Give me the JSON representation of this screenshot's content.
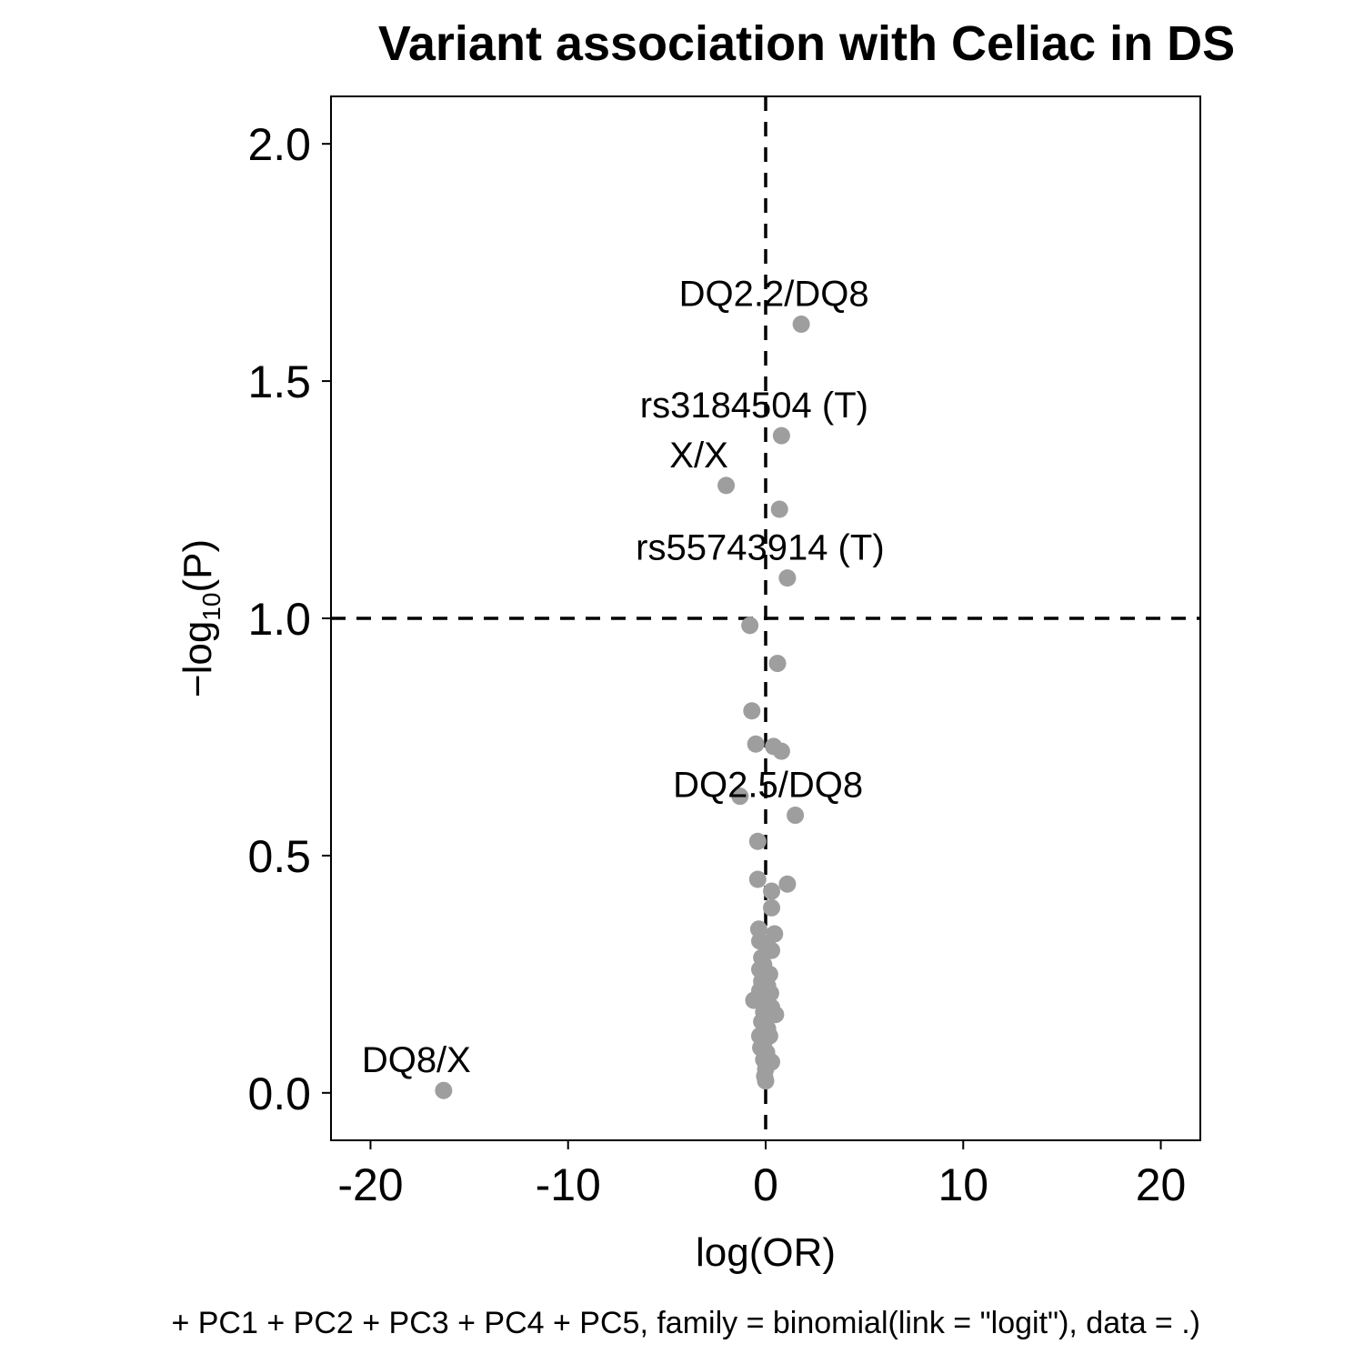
{
  "chart_data": {
    "type": "scatter",
    "title": "Variant association with Celiac in DS",
    "xlabel": "log(OR)",
    "ylabel": "-log10(P)",
    "ylabel_parts": {
      "prefix": "−log",
      "sub": "10",
      "suffix": "(P)"
    },
    "caption": "+ PC1 + PC2 + PC3 + PC4 + PC5, family = binomial(link = \"logit\"), data = .)",
    "xlim": [
      -22,
      22
    ],
    "ylim": [
      -0.1,
      2.1
    ],
    "x_ticks": [
      -20,
      -10,
      0,
      10,
      20
    ],
    "x_tick_labels": [
      "-20",
      "-10",
      "0",
      "10",
      "20"
    ],
    "y_ticks": [
      0,
      0.5,
      1,
      1.5,
      2
    ],
    "y_tick_labels": [
      "0.0",
      "0.5",
      "1.0",
      "1.5",
      "2.0"
    ],
    "reference_lines": {
      "vertical_x": 0,
      "horizontal_y": 1.0,
      "style": "dashed"
    },
    "point_color": "#9e9e9e",
    "points": [
      {
        "x": 1.8,
        "y": 1.62,
        "label": "DQ2.2/DQ8"
      },
      {
        "x": 0.8,
        "y": 1.385,
        "label": "rs3184504 (T)"
      },
      {
        "x": -2.0,
        "y": 1.28,
        "label": "X/X"
      },
      {
        "x": 0.7,
        "y": 1.23
      },
      {
        "x": 1.1,
        "y": 1.085,
        "label": "rs55743914 (T)"
      },
      {
        "x": -0.8,
        "y": 0.985
      },
      {
        "x": 0.6,
        "y": 0.905
      },
      {
        "x": -0.7,
        "y": 0.805
      },
      {
        "x": -0.5,
        "y": 0.735
      },
      {
        "x": 0.4,
        "y": 0.73
      },
      {
        "x": 0.8,
        "y": 0.72
      },
      {
        "x": -1.3,
        "y": 0.625
      },
      {
        "x": 1.5,
        "y": 0.585,
        "label": "DQ2.5/DQ8"
      },
      {
        "x": -0.4,
        "y": 0.53
      },
      {
        "x": -0.4,
        "y": 0.45
      },
      {
        "x": 1.1,
        "y": 0.44
      },
      {
        "x": 0.3,
        "y": 0.425
      },
      {
        "x": 0.3,
        "y": 0.39
      },
      {
        "x": -0.35,
        "y": 0.345
      },
      {
        "x": 0.45,
        "y": 0.335
      },
      {
        "x": -0.3,
        "y": 0.32
      },
      {
        "x": 0.1,
        "y": 0.31
      },
      {
        "x": 0.3,
        "y": 0.3
      },
      {
        "x": -0.2,
        "y": 0.285
      },
      {
        "x": -0.1,
        "y": 0.27
      },
      {
        "x": -0.3,
        "y": 0.26
      },
      {
        "x": 0.2,
        "y": 0.25
      },
      {
        "x": -0.2,
        "y": 0.235
      },
      {
        "x": 0.1,
        "y": 0.225
      },
      {
        "x": -0.3,
        "y": 0.215
      },
      {
        "x": 0.25,
        "y": 0.21
      },
      {
        "x": -0.6,
        "y": 0.195
      },
      {
        "x": 0.0,
        "y": 0.19
      },
      {
        "x": 0.3,
        "y": 0.18
      },
      {
        "x": -0.1,
        "y": 0.17
      },
      {
        "x": 0.5,
        "y": 0.165
      },
      {
        "x": -0.2,
        "y": 0.15
      },
      {
        "x": 0.1,
        "y": 0.135
      },
      {
        "x": -0.3,
        "y": 0.12
      },
      {
        "x": 0.2,
        "y": 0.12
      },
      {
        "x": -0.1,
        "y": 0.105
      },
      {
        "x": -0.25,
        "y": 0.095
      },
      {
        "x": 0.05,
        "y": 0.085
      },
      {
        "x": -0.1,
        "y": 0.07
      },
      {
        "x": 0.3,
        "y": 0.065
      },
      {
        "x": 0.0,
        "y": 0.05
      },
      {
        "x": -0.05,
        "y": 0.035
      },
      {
        "x": 0.0,
        "y": 0.025
      },
      {
        "x": -16.3,
        "y": 0.005,
        "label": "DQ8/X"
      }
    ]
  }
}
